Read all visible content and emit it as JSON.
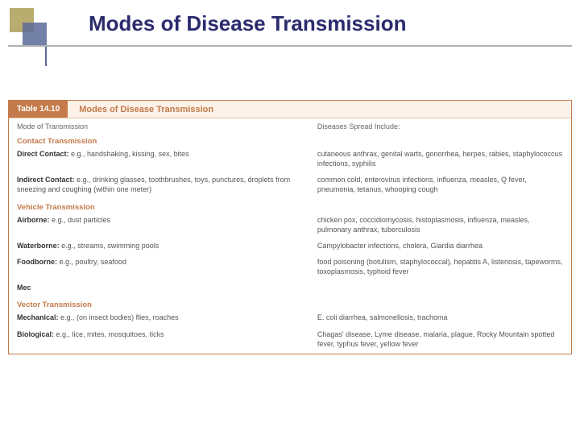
{
  "slide": {
    "title": "Modes of Disease Transmission"
  },
  "table": {
    "number": "Table 14.10",
    "title": "Modes of Disease Transmission",
    "col_left": "Mode of Transmission",
    "col_right": "Diseases Spread Include:",
    "sections": [
      {
        "heading": "Contact Transmission",
        "rows": [
          {
            "label": "Direct Contact:",
            "desc": " e.g., handshaking, kissing, sex, bites",
            "right": "cutaneous anthrax, genital warts, gonorrhea, herpes, rabies, staphylococcus infections, syphilis"
          },
          {
            "label": "Indirect Contact:",
            "desc": " e.g., drinking glasses, toothbrushes, toys, punctures, droplets from sneezing and coughing (within one meter)",
            "right": "common cold, enterovirus infections, influenza, measles, Q fever, pneumonia, tetanus, whooping cough"
          }
        ]
      },
      {
        "heading": "Vehicle Transmission",
        "rows": [
          {
            "label": "Airborne:",
            "desc": " e.g., dust particles",
            "right": "chicken pox, coccidiomycosis, histoplasmosis, influenza, measles, pulmonary anthrax, tuberculosis"
          },
          {
            "label": "Waterborne:",
            "desc": " e.g., streams, swimming pools",
            "right": "Campylobacter infections, cholera, Giardia diarrhea"
          },
          {
            "label": "Foodborne:",
            "desc": " e.g., poultry, seafood",
            "right": "food poisoning (botulism, staphylococcal), hepatitis A, listeriosis, tapeworms, toxoplasmosis, typhoid fever"
          },
          {
            "label": "Mec",
            "desc": "",
            "right": ""
          }
        ]
      },
      {
        "heading": "Vector Transmission",
        "rows": [
          {
            "label": "Mechanical:",
            "desc": " e.g., (on insect bodies) flies, roaches",
            "right": "E. coli diarrhea, salmonellosis, trachoma"
          },
          {
            "label": "Biological:",
            "desc": " e.g., lice, mites, mosquitoes, ticks",
            "right": "Chagas' disease, Lyme disease, malaria, plague, Rocky Mountain spotted fever, typhus fever, yellow fever"
          }
        ]
      }
    ]
  }
}
